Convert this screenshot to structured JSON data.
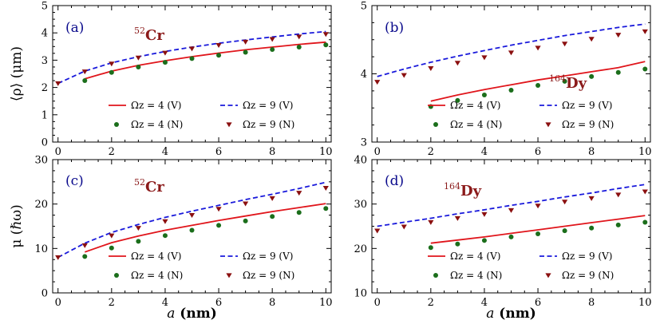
{
  "figure": {
    "xlabel": "a (nm)",
    "xlabel_var": "a",
    "xlabel_unit": " (nm)"
  },
  "legend_labels": {
    "omega4_V": "Ωz = 4 (V)",
    "omega9_V": "Ωz = 9 (V)",
    "omega4_N": "Ωz = 4 (N)",
    "omega9_N": "Ωz = 9 (N)"
  },
  "colors": {
    "omega4": "#e0151b",
    "omega9": "#1a1adb",
    "dots4": "#1b6e1b",
    "tri9": "#8b1010",
    "panel_label": "#0a0a8c",
    "element": "#8b1a1a"
  },
  "chart_data": [
    {
      "id": "a",
      "panel_label": "(a)",
      "isotope_mass": "52",
      "element": "Cr",
      "type": "line+scatter",
      "ylabel": "⟨ρ⟩ (μm)",
      "xlim": [
        -0.2,
        10.2
      ],
      "ylim": [
        0,
        5
      ],
      "xticks": [
        0,
        2,
        4,
        6,
        8,
        10
      ],
      "yticks": [
        0,
        1,
        2,
        3,
        4,
        5
      ],
      "series": [
        {
          "name": "Ωz = 4 (V)",
          "kind": "line-solid",
          "x": [
            1,
            2,
            3,
            4,
            5,
            6,
            7,
            8,
            9,
            10
          ],
          "y": [
            2.32,
            2.6,
            2.81,
            2.98,
            3.13,
            3.26,
            3.38,
            3.48,
            3.58,
            3.66
          ]
        },
        {
          "name": "Ωz = 9 (V)",
          "kind": "line-dashed",
          "x": [
            0,
            1,
            2,
            3,
            4,
            5,
            6,
            7,
            8,
            9,
            10
          ],
          "y": [
            2.15,
            2.6,
            2.9,
            3.13,
            3.32,
            3.48,
            3.62,
            3.74,
            3.85,
            3.96,
            4.05
          ]
        },
        {
          "name": "Ωz = 4 (N)",
          "kind": "dots",
          "x": [
            1,
            2,
            3,
            4,
            5,
            6,
            7,
            8,
            9,
            10
          ],
          "y": [
            2.25,
            2.55,
            2.75,
            2.92,
            3.06,
            3.18,
            3.29,
            3.39,
            3.48,
            3.56
          ]
        },
        {
          "name": "Ωz = 9 (N)",
          "kind": "triangles",
          "x": [
            0,
            1,
            2,
            3,
            4,
            5,
            6,
            7,
            8,
            9,
            10
          ],
          "y": [
            2.15,
            2.58,
            2.87,
            3.09,
            3.27,
            3.42,
            3.55,
            3.67,
            3.77,
            3.86,
            3.95
          ]
        }
      ]
    },
    {
      "id": "b",
      "panel_label": "(b)",
      "isotope_mass": "164",
      "element": "Dy",
      "type": "line+scatter",
      "ylabel": "",
      "xlim": [
        -0.2,
        10.2
      ],
      "ylim": [
        3,
        5
      ],
      "xticks": [
        0,
        2,
        4,
        6,
        8,
        10
      ],
      "yticks": [
        3,
        4,
        5
      ],
      "series": [
        {
          "name": "Ωz = 4 (V)",
          "kind": "line-solid",
          "x": [
            2,
            3,
            4,
            5,
            6,
            7,
            8,
            9,
            10
          ],
          "y": [
            3.6,
            3.69,
            3.77,
            3.84,
            3.91,
            3.97,
            4.03,
            4.09,
            4.18
          ]
        },
        {
          "name": "Ωz = 9 (V)",
          "kind": "line-dashed",
          "x": [
            0,
            1,
            2,
            3,
            4,
            5,
            6,
            7,
            8,
            9,
            10
          ],
          "y": [
            3.96,
            4.07,
            4.17,
            4.26,
            4.34,
            4.42,
            4.49,
            4.56,
            4.62,
            4.68,
            4.73
          ]
        },
        {
          "name": "Ωz = 4 (N)",
          "kind": "dots",
          "x": [
            2,
            3,
            4,
            5,
            6,
            7,
            8,
            9,
            10
          ],
          "y": [
            3.52,
            3.61,
            3.69,
            3.76,
            3.83,
            3.89,
            3.96,
            4.02,
            4.07
          ]
        },
        {
          "name": "Ωz = 9 (N)",
          "kind": "triangles",
          "x": [
            0,
            1,
            2,
            3,
            4,
            5,
            6,
            7,
            8,
            9,
            10
          ],
          "y": [
            3.88,
            3.98,
            4.08,
            4.16,
            4.24,
            4.31,
            4.38,
            4.44,
            4.51,
            4.57,
            4.62
          ]
        }
      ]
    },
    {
      "id": "c",
      "panel_label": "(c)",
      "isotope_mass": "52",
      "element": "Cr",
      "type": "line+scatter",
      "ylabel": "μ (ℏω)",
      "xlim": [
        -0.2,
        10.2
      ],
      "ylim": [
        0,
        30
      ],
      "xticks": [
        0,
        2,
        4,
        6,
        8,
        10
      ],
      "yticks": [
        0,
        10,
        20,
        30
      ],
      "series": [
        {
          "name": "Ωz = 4 (V)",
          "kind": "line-solid",
          "x": [
            1,
            2,
            3,
            4,
            5,
            6,
            7,
            8,
            9,
            10
          ],
          "y": [
            9.2,
            11.3,
            12.8,
            14.1,
            15.2,
            16.3,
            17.3,
            18.3,
            19.2,
            20.1
          ]
        },
        {
          "name": "Ωz = 9 (V)",
          "kind": "line-dashed",
          "x": [
            0,
            1,
            2,
            3,
            4,
            5,
            6,
            7,
            8,
            9,
            10
          ],
          "y": [
            8.0,
            11.2,
            13.6,
            15.4,
            17.0,
            18.4,
            19.7,
            21.0,
            22.2,
            23.5,
            24.9
          ]
        },
        {
          "name": "Ωz = 4 (N)",
          "kind": "dots",
          "x": [
            1,
            2,
            3,
            4,
            5,
            6,
            7,
            8,
            9,
            10
          ],
          "y": [
            8.2,
            10.1,
            11.6,
            12.9,
            14.1,
            15.2,
            16.2,
            17.2,
            18.1,
            19.0
          ]
        },
        {
          "name": "Ωz = 9 (N)",
          "kind": "triangles",
          "x": [
            0,
            1,
            2,
            3,
            4,
            5,
            6,
            7,
            8,
            9,
            10
          ],
          "y": [
            8.0,
            10.7,
            12.9,
            14.6,
            16.1,
            17.5,
            18.9,
            20.1,
            21.3,
            22.5,
            23.6
          ]
        }
      ]
    },
    {
      "id": "d",
      "panel_label": "(d)",
      "isotope_mass": "164",
      "element": "Dy",
      "type": "line+scatter",
      "ylabel": "",
      "xlim": [
        -0.2,
        10.2
      ],
      "ylim": [
        10,
        40
      ],
      "xticks": [
        0,
        2,
        4,
        6,
        8,
        10
      ],
      "yticks": [
        10,
        20,
        30,
        40
      ],
      "series": [
        {
          "name": "Ωz = 4 (V)",
          "kind": "line-solid",
          "x": [
            2,
            3,
            4,
            5,
            6,
            7,
            8,
            9,
            10
          ],
          "y": [
            21.2,
            21.9,
            22.6,
            23.4,
            24.2,
            25.0,
            25.8,
            26.6,
            27.4
          ]
        },
        {
          "name": "Ωz = 9 (V)",
          "kind": "line-dashed",
          "x": [
            0,
            1,
            2,
            3,
            4,
            5,
            6,
            7,
            8,
            9,
            10
          ],
          "y": [
            25.0,
            25.9,
            26.8,
            27.8,
            28.7,
            29.7,
            30.6,
            31.6,
            32.5,
            33.5,
            34.4
          ]
        },
        {
          "name": "Ωz = 4 (N)",
          "kind": "dots",
          "x": [
            2,
            3,
            4,
            5,
            6,
            7,
            8,
            9,
            10
          ],
          "y": [
            20.2,
            21.0,
            21.8,
            22.6,
            23.3,
            24.0,
            24.6,
            25.3,
            25.9
          ]
        },
        {
          "name": "Ωz = 9 (N)",
          "kind": "triangles",
          "x": [
            0,
            1,
            2,
            3,
            4,
            5,
            6,
            7,
            8,
            9,
            10
          ],
          "y": [
            24.0,
            24.9,
            25.9,
            26.8,
            27.7,
            28.6,
            29.6,
            30.5,
            31.3,
            32.1,
            32.8
          ]
        }
      ]
    }
  ]
}
